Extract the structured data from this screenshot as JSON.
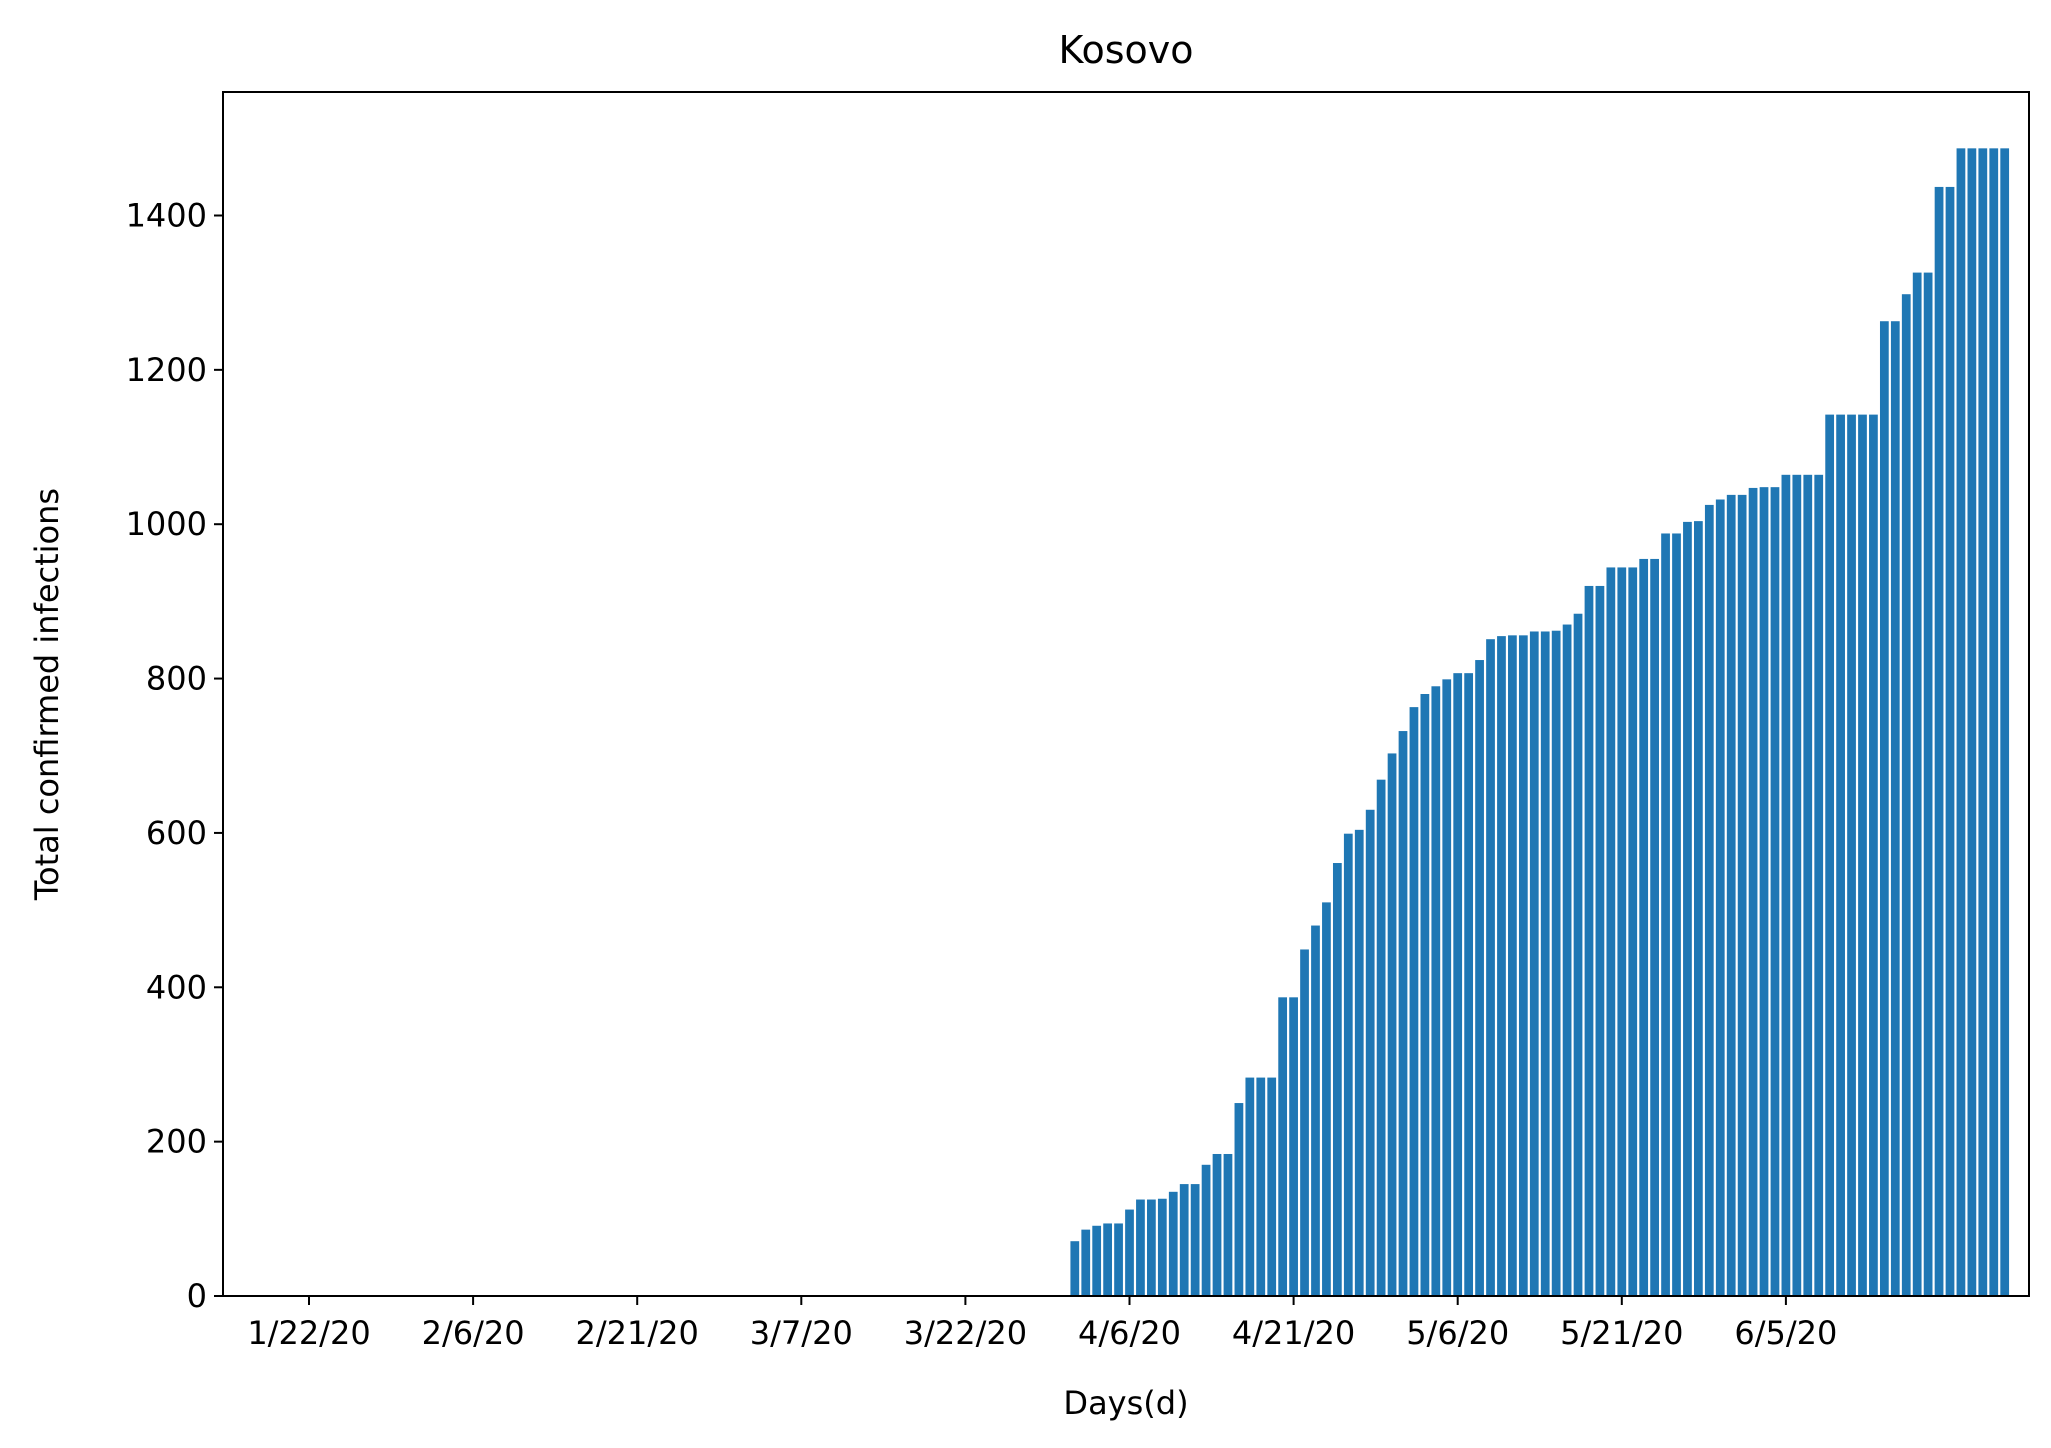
{
  "chart_data": {
    "type": "bar",
    "title": "Kosovo",
    "xlabel": "Days(d)",
    "ylabel": "Total confirmed infections",
    "start_date": "1/22/20",
    "x_ticks": [
      "1/22/20",
      "2/6/20",
      "2/21/20",
      "3/7/20",
      "3/22/20",
      "4/6/20",
      "4/21/20",
      "5/6/20",
      "5/21/20",
      "6/5/20"
    ],
    "y_ticks": [
      0,
      200,
      400,
      600,
      800,
      1000,
      1200,
      1400
    ],
    "ylim": [
      0,
      1560
    ],
    "bar_color": "#1f77b4",
    "grid": false,
    "values": [
      0,
      0,
      0,
      0,
      0,
      0,
      0,
      0,
      0,
      0,
      0,
      0,
      0,
      0,
      0,
      0,
      0,
      0,
      0,
      0,
      0,
      0,
      0,
      0,
      0,
      0,
      0,
      0,
      0,
      0,
      0,
      0,
      0,
      0,
      0,
      0,
      0,
      0,
      0,
      0,
      0,
      0,
      0,
      0,
      0,
      0,
      0,
      0,
      0,
      0,
      0,
      0,
      0,
      0,
      0,
      0,
      0,
      0,
      0,
      0,
      0,
      0,
      0,
      0,
      0,
      0,
      0,
      0,
      0,
      0,
      71,
      86,
      91,
      94,
      94,
      112,
      125,
      125,
      126,
      135,
      145,
      145,
      170,
      184,
      184,
      250,
      283,
      283,
      283,
      387,
      387,
      449,
      480,
      510,
      561,
      599,
      604,
      630,
      669,
      703,
      732,
      763,
      780,
      790,
      799,
      807,
      807,
      824,
      851,
      855,
      856,
      856,
      861,
      861,
      862,
      870,
      884,
      920,
      920,
      944,
      944,
      944,
      955,
      955,
      988,
      988,
      1003,
      1004,
      1025,
      1032,
      1038,
      1038,
      1047,
      1048,
      1048,
      1064,
      1064,
      1064,
      1064,
      1142,
      1142,
      1142,
      1142,
      1142,
      1263,
      1263,
      1298,
      1326,
      1326,
      1437,
      1437,
      1487,
      1487,
      1487,
      1487,
      1487
    ]
  }
}
